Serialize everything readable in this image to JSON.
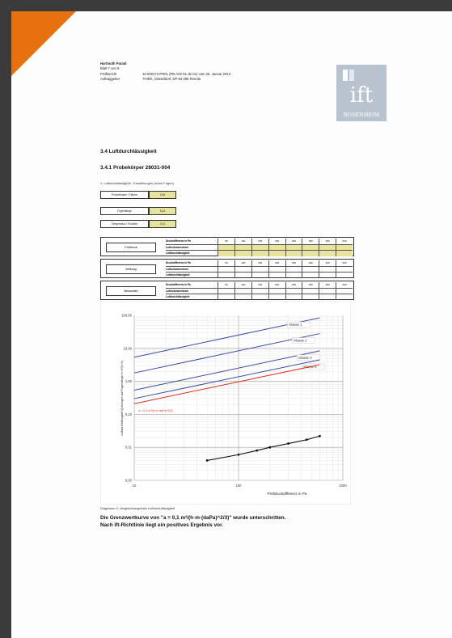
{
  "header": {
    "company": "Hartmuth Paradi",
    "page": "Blatt 7 von 9",
    "rows": [
      {
        "k": "Prüfbericht",
        "v": "12-000173-PR01 (PB-A02-01-de-01) vom 25. Januar 2013"
      },
      {
        "k": "Auftraggeber",
        "v": "THIRK, Gässeldorf, DP-84 095 Remda"
      }
    ]
  },
  "logo": {
    "letters": "ift",
    "city": "ROSENHEIM",
    "bg": "#b9c2cf",
    "fg": "#ffffff"
  },
  "section": {
    "title": "3.4 Luftdurchlässigkeit",
    "subtitle": "3.4.1 Probekörper 28031-004",
    "caption": "1. Luftdurchlässigkeit - Einstellungen (keine Fugen)"
  },
  "params": [
    {
      "label": "Probekörper / Fläche",
      "value": "1,54"
    },
    {
      "label": "Fugenlänge",
      "value": "5,24"
    },
    {
      "label": "Temperatur / Feuchte",
      "value": "21,0"
    }
  ],
  "tables": [
    {
      "label": "Prüfdruck"
    },
    {
      "label": "Wirkung"
    },
    {
      "label": "Bekanntes"
    }
  ],
  "table_header": "Druckdifferenz in Pa",
  "table_cols": [
    "50",
    "100",
    "150",
    "200",
    "250",
    "300",
    "450",
    "600"
  ],
  "table_rows": [
    "Luftvolumenstrom",
    "Luftdurchlässigkeit"
  ],
  "chart": {
    "ylabel": "Luftdurchlässigkeit Q bezogen auf Fugenlänge in m³/(h·m)",
    "xlabel": "Prüfdruckdifferenz in Pa",
    "yticks": [
      "100,00",
      "10,00",
      "1,00",
      "0,10",
      "0,01",
      "0,00"
    ],
    "xticks": [
      "10",
      "100",
      "1000"
    ],
    "class_labels": [
      "Klasse 1",
      "Klasse 2",
      "Klasse 3",
      "Klasse 4"
    ],
    "limit_label": "a = 0,1 m³/(h·m·daPa^2/3)",
    "measure_color": "#111111",
    "class_color": "#3b4aa8",
    "limit_color": "#e0301c"
  },
  "chart_data": {
    "type": "line",
    "xlabel": "Prüfdruckdifferenz in Pa",
    "ylabel": "Luftdurchlässigkeit Q bezogen auf Fugenlänge in m³/(h·m)",
    "x_scale": "log",
    "y_scale": "log",
    "xlim": [
      10,
      1000
    ],
    "ylim": [
      0.001,
      100
    ],
    "series": [
      {
        "name": "Klasse 1",
        "x": [
          10,
          600
        ],
        "y": [
          5.4,
          84
        ]
      },
      {
        "name": "Klasse 2",
        "x": [
          10,
          600
        ],
        "y": [
          1.8,
          28
        ]
      },
      {
        "name": "Klasse 3",
        "x": [
          10,
          600
        ],
        "y": [
          0.54,
          8.4
        ]
      },
      {
        "name": "Klasse 4",
        "x": [
          10,
          600
        ],
        "y": [
          0.3,
          4.5
        ]
      },
      {
        "name": "a = 0,1 m³/(h·m·daPa^2/3)",
        "x": [
          10,
          600
        ],
        "y": [
          0.21,
          3.2
        ]
      },
      {
        "name": "",
        "x": [
          50,
          100,
          150,
          200,
          300,
          450,
          600
        ],
        "y": [
          0.004,
          0.006,
          0.008,
          0.01,
          0.013,
          0.017,
          0.022
        ]
      }
    ]
  },
  "notes": {
    "diagram": "Diagramm 4: Vergleichsergebnis Luftdurchlässigkeit"
  },
  "result": {
    "line1": "Die Grenzwertkurve von \"a = 0,1 m³/(h·m·(daPa)^2/3)\" wurde unterschritten.",
    "line2": "Nach ift-Richtlinie liegt ein positives Ergebnis vor."
  }
}
